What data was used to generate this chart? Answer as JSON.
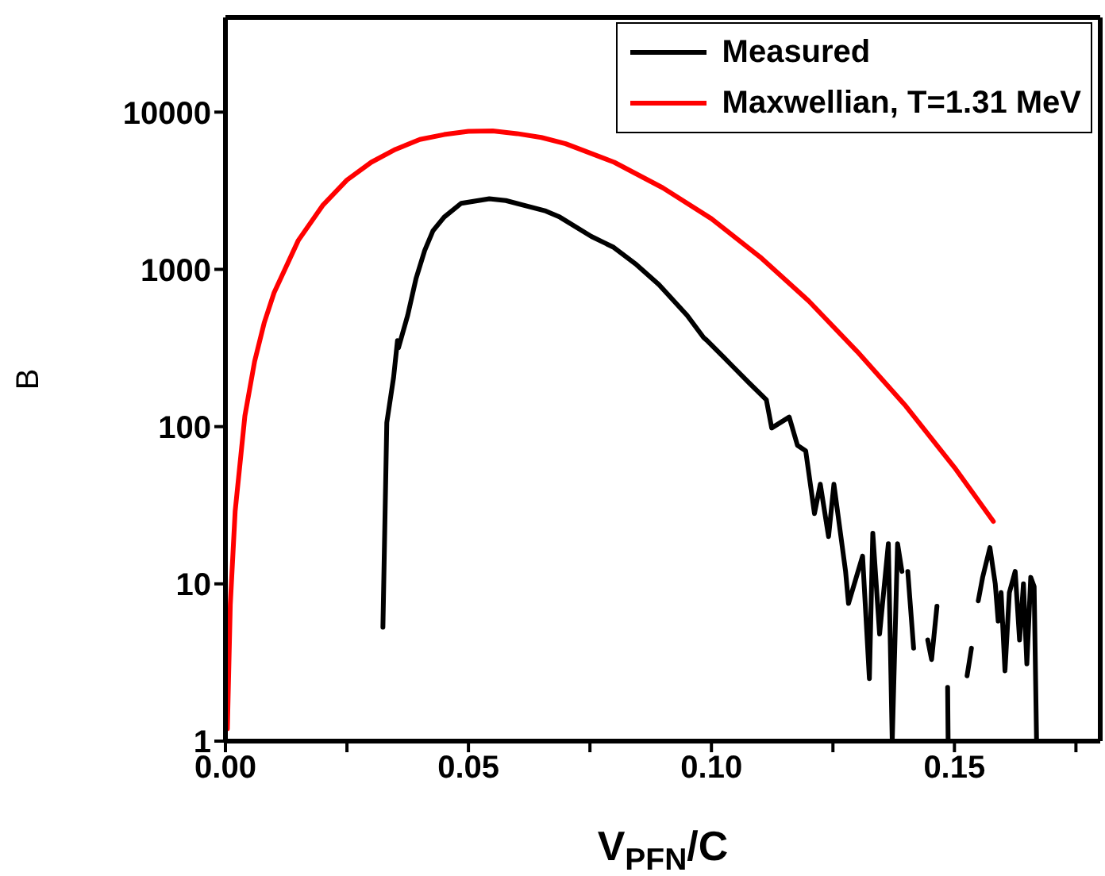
{
  "chart_data": {
    "type": "line",
    "xlabel": "V$_{PFN}$/C",
    "ylabel": "B",
    "log": "y",
    "legend": "top right",
    "marker": "none",
    "line_style": "solid",
    "xlim": [
      0,
      0.18
    ],
    "xticks": [
      {
        "value": 0,
        "label": "0.00"
      },
      {
        "value": 0.025,
        "label": null
      },
      {
        "value": 0.05,
        "label": "0.05"
      },
      {
        "value": 0.075,
        "label": null
      },
      {
        "value": 0.1,
        "label": "0.10"
      },
      {
        "value": 0.125,
        "label": null
      },
      {
        "value": 0.15,
        "label": "0.15"
      },
      {
        "value": 0.175,
        "label": null
      }
    ],
    "ylim": [
      1,
      40000
    ],
    "yticks": [
      1,
      10,
      100,
      1000,
      10000
    ],
    "series": [
      {
        "name": "Measured",
        "color": "#000000",
        "x": [
          0.0324,
          0.0332,
          0.0346,
          0.0354,
          0.0356,
          0.0375,
          0.0392,
          0.041,
          0.0427,
          0.045,
          0.0485,
          0.0543,
          0.0577,
          0.0659,
          0.0688,
          0.0753,
          0.0799,
          0.0846,
          0.0892,
          0.095,
          0.0984,
          0.099,
          0.1026,
          0.1043,
          0.1078,
          0.1113,
          0.1124,
          0.116,
          0.1177,
          0.1194,
          0.1212,
          0.1224,
          0.1241,
          0.1252,
          0.1276,
          0.1282,
          0.1311,
          0.1325,
          0.1332,
          0.1346,
          0.1364,
          0.1372,
          0.1383,
          0.1392,
          0.1398,
          0.1404,
          0.1416,
          0.143,
          0.1445,
          0.1453,
          0.1464,
          0.1475,
          0.1486,
          0.1487,
          0.15,
          0.1526,
          0.1535,
          0.1542,
          0.1549,
          0.1558,
          0.1573,
          0.1584,
          0.159,
          0.1596,
          0.1604,
          0.1613,
          0.1625,
          0.1634,
          0.1642,
          0.1649,
          0.1657,
          0.1664,
          0.1669
        ],
        "values": [
          5.3,
          106,
          206,
          352,
          317,
          510,
          870,
          1320,
          1760,
          2150,
          2630,
          2810,
          2740,
          2350,
          2150,
          1620,
          1380,
          1070,
          800,
          510,
          368,
          355,
          275,
          243,
          189,
          148,
          98,
          115,
          76,
          70,
          28,
          43,
          20,
          43,
          12,
          7.5,
          15,
          2.5,
          21,
          4.8,
          18,
          1,
          18,
          12,
          null,
          12,
          3.9,
          null,
          4.4,
          3.3,
          7.2,
          null,
          2.2,
          1,
          null,
          2.6,
          3.9,
          null,
          7.8,
          11,
          17,
          10,
          5.8,
          8.8,
          2.8,
          8.8,
          12,
          4.4,
          10,
          3.1,
          11,
          9.6,
          1
        ]
      },
      {
        "name": "Maxwellian, T=1.31 MeV",
        "color": "#ff0000",
        "x": [
          0.0004,
          0.001,
          0.002,
          0.004,
          0.006,
          0.008,
          0.01,
          0.015,
          0.02,
          0.025,
          0.03,
          0.035,
          0.04,
          0.045,
          0.05,
          0.055,
          0.06,
          0.065,
          0.07,
          0.08,
          0.09,
          0.1,
          0.11,
          0.12,
          0.13,
          0.14,
          0.15,
          0.158
        ],
        "values": [
          1.2,
          7.4,
          29,
          117,
          260,
          460,
          710,
          1530,
          2550,
          3700,
          4800,
          5800,
          6700,
          7200,
          7550,
          7600,
          7300,
          6900,
          6300,
          4800,
          3300,
          2100,
          1200,
          630,
          300,
          135,
          55,
          25
        ]
      }
    ]
  }
}
